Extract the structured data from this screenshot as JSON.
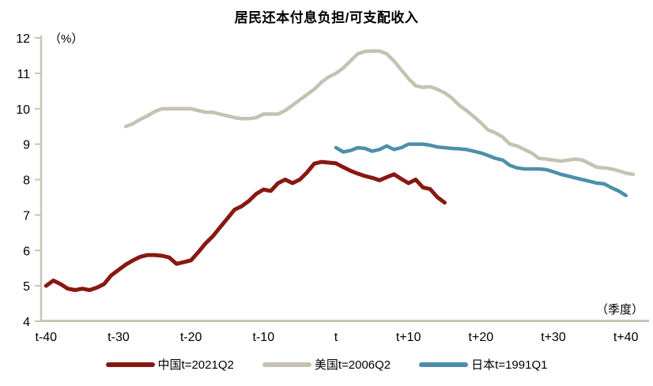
{
  "chart_data": {
    "type": "line",
    "title": "居民还本付息负担/可支配收入",
    "xlabel": "（季度）",
    "ylabel": "（%）",
    "x_axis_note": "x values are quarters relative to event quarter t",
    "xlim": [
      -42,
      43
    ],
    "ylim": [
      4,
      12
    ],
    "grid": false,
    "legend_position": "bottom",
    "y_ticks": [
      4,
      5,
      6,
      7,
      8,
      9,
      10,
      11,
      12
    ],
    "x_ticks": [
      {
        "pos": -40,
        "label": "t-40"
      },
      {
        "pos": -30,
        "label": "t-30"
      },
      {
        "pos": -20,
        "label": "t-20"
      },
      {
        "pos": -10,
        "label": "t-10"
      },
      {
        "pos": 0,
        "label": "t"
      },
      {
        "pos": 10,
        "label": "t+10"
      },
      {
        "pos": 20,
        "label": "t+20"
      },
      {
        "pos": 30,
        "label": "t+30"
      },
      {
        "pos": 40,
        "label": "t+40"
      }
    ],
    "axis_color": "#C8C5B6",
    "series": [
      {
        "name": "中国t=2021Q2",
        "color": "#871812",
        "line_width": 5,
        "x_start": -40,
        "x_step": 1,
        "values": [
          5.0,
          5.15,
          5.05,
          4.92,
          4.88,
          4.92,
          4.88,
          4.95,
          5.05,
          5.3,
          5.45,
          5.6,
          5.72,
          5.82,
          5.87,
          5.87,
          5.85,
          5.8,
          5.62,
          5.67,
          5.72,
          5.95,
          6.2,
          6.4,
          6.65,
          6.9,
          7.15,
          7.25,
          7.4,
          7.6,
          7.72,
          7.68,
          7.9,
          8.0,
          7.9,
          8.0,
          8.2,
          8.45,
          8.5,
          8.48,
          8.46,
          8.35,
          8.25,
          8.17,
          8.1,
          8.05,
          7.98,
          8.07,
          8.15,
          8.02,
          7.9,
          8.0,
          7.78,
          7.73,
          7.5,
          7.35
        ]
      },
      {
        "name": "美国t=2006Q2",
        "color": "#C5C2B1",
        "line_width": 4.5,
        "x_start": -29,
        "x_step": 1,
        "values": [
          9.5,
          9.58,
          9.7,
          9.8,
          9.92,
          10.0,
          10.0,
          10.0,
          10.0,
          10.0,
          9.95,
          9.9,
          9.9,
          9.85,
          9.8,
          9.75,
          9.72,
          9.72,
          9.75,
          9.85,
          9.85,
          9.85,
          9.95,
          10.1,
          10.25,
          10.4,
          10.55,
          10.75,
          10.9,
          11.0,
          11.15,
          11.35,
          11.55,
          11.62,
          11.63,
          11.63,
          11.55,
          11.35,
          11.1,
          10.85,
          10.65,
          10.6,
          10.62,
          10.55,
          10.45,
          10.3,
          10.1,
          9.95,
          9.78,
          9.6,
          9.4,
          9.32,
          9.2,
          9.0,
          8.95,
          8.85,
          8.75,
          8.6,
          8.58,
          8.55,
          8.52,
          8.55,
          8.58,
          8.55,
          8.45,
          8.35,
          8.33,
          8.3,
          8.25,
          8.18,
          8.15
        ]
      },
      {
        "name": "日本t=1991Q1",
        "color": "#4D8FA9",
        "line_width": 4.5,
        "x_start": 0,
        "x_step": 1,
        "values": [
          8.9,
          8.78,
          8.82,
          8.9,
          8.88,
          8.8,
          8.85,
          8.95,
          8.85,
          8.9,
          9.0,
          9.0,
          9.0,
          8.97,
          8.92,
          8.9,
          8.88,
          8.87,
          8.85,
          8.8,
          8.75,
          8.68,
          8.6,
          8.55,
          8.4,
          8.33,
          8.3,
          8.3,
          8.3,
          8.28,
          8.22,
          8.15,
          8.1,
          8.05,
          8.0,
          7.95,
          7.9,
          7.88,
          7.77,
          7.68,
          7.55
        ]
      }
    ]
  }
}
